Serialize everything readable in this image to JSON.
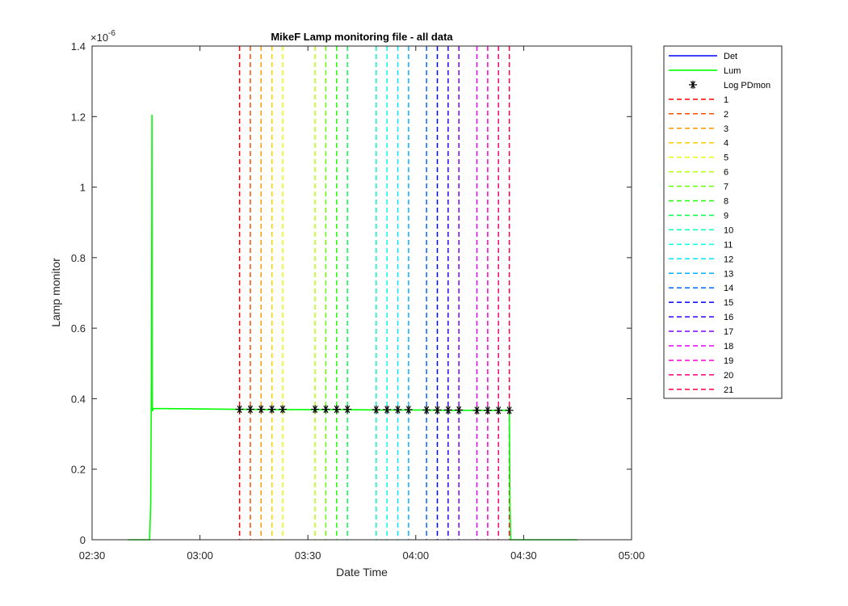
{
  "chart_data": {
    "type": "line",
    "title": "MikeF Lamp monitoring file - all data",
    "xlabel": "Date Time",
    "ylabel": "Lamp monitor",
    "y_exponent_label": "×10",
    "y_exponent_value": "-6",
    "xlim_minutes": [
      150,
      300
    ],
    "x_tick_labels": [
      "02:30",
      "03:00",
      "03:30",
      "04:00",
      "04:30",
      "05:00"
    ],
    "x_tick_minutes": [
      150,
      180,
      210,
      240,
      270,
      300
    ],
    "ylim": [
      0,
      1.4
    ],
    "y_ticks": [
      0,
      0.2,
      0.4,
      0.6,
      0.8,
      1,
      1.2,
      1.4
    ],
    "y_tick_labels": [
      "0",
      "0.2",
      "0.4",
      "0.6",
      "0.8",
      "1",
      "1.2",
      "1.4"
    ],
    "grid": false,
    "legend_position": "outside-right",
    "series": [
      {
        "name": "Det",
        "color": "#0000ff",
        "style": "solid",
        "x_minutes": [],
        "y": []
      },
      {
        "name": "Lum",
        "color": "#00ff00",
        "style": "solid",
        "x_minutes": [
          160,
          166,
          166.3,
          166.5,
          166.6,
          166.65,
          166.7,
          166.72,
          166.75,
          166.8,
          167.0,
          167.5,
          170,
          180,
          190,
          200,
          210,
          220,
          230,
          240,
          250,
          260,
          266.0,
          266.2,
          266.4,
          268,
          285
        ],
        "y": [
          0,
          0,
          0.1,
          0.45,
          0.9,
          1.205,
          0.9,
          0.5,
          0.37,
          0.365,
          0.372,
          0.372,
          0.372,
          0.371,
          0.37,
          0.369,
          0.369,
          0.369,
          0.368,
          0.368,
          0.367,
          0.367,
          0.367,
          0.1,
          0.0,
          0.0,
          0
        ]
      },
      {
        "name": "Log PDmon",
        "color": "#000000",
        "style": "marker-asterisk",
        "x_minutes": [
          191,
          194,
          197,
          200,
          203,
          212,
          215,
          218,
          221,
          229,
          232,
          235,
          238,
          243,
          246,
          249,
          252,
          257,
          260,
          263,
          266
        ],
        "y": [
          0.37,
          0.37,
          0.37,
          0.37,
          0.37,
          0.37,
          0.37,
          0.37,
          0.37,
          0.369,
          0.369,
          0.369,
          0.369,
          0.368,
          0.368,
          0.368,
          0.368,
          0.367,
          0.367,
          0.367,
          0.367
        ]
      }
    ],
    "vertical_lines": [
      {
        "name": "1",
        "x_minutes": 191,
        "color": "#ff0000"
      },
      {
        "name": "2",
        "x_minutes": 194,
        "color": "#ff4d00"
      },
      {
        "name": "3",
        "x_minutes": 197,
        "color": "#ff9900"
      },
      {
        "name": "4",
        "x_minutes": 200,
        "color": "#ffcc00"
      },
      {
        "name": "5",
        "x_minutes": 203,
        "color": "#e5ff00"
      },
      {
        "name": "6",
        "x_minutes": 212,
        "color": "#b3ff00"
      },
      {
        "name": "7",
        "x_minutes": 215,
        "color": "#66ff00"
      },
      {
        "name": "8",
        "x_minutes": 218,
        "color": "#1aff00"
      },
      {
        "name": "9",
        "x_minutes": 221,
        "color": "#00ff4d"
      },
      {
        "name": "10",
        "x_minutes": 229,
        "color": "#00ffb3"
      },
      {
        "name": "11",
        "x_minutes": 232,
        "color": "#00ffe6"
      },
      {
        "name": "12",
        "x_minutes": 235,
        "color": "#00e6ff"
      },
      {
        "name": "13",
        "x_minutes": 238,
        "color": "#00b3ff"
      },
      {
        "name": "14",
        "x_minutes": 243,
        "color": "#0066ff"
      },
      {
        "name": "15",
        "x_minutes": 246,
        "color": "#0000ff"
      },
      {
        "name": "16",
        "x_minutes": 249,
        "color": "#3300ff"
      },
      {
        "name": "17",
        "x_minutes": 252,
        "color": "#8000ff"
      },
      {
        "name": "18",
        "x_minutes": 257,
        "color": "#e600ff"
      },
      {
        "name": "19",
        "x_minutes": 260,
        "color": "#ff00cc"
      },
      {
        "name": "20",
        "x_minutes": 263,
        "color": "#ff0080"
      },
      {
        "name": "21",
        "x_minutes": 266,
        "color": "#ff0040"
      }
    ]
  }
}
